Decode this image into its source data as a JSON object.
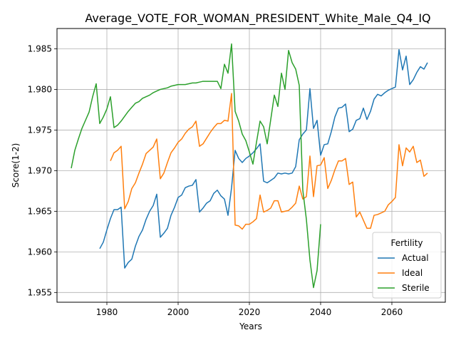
{
  "chart_data": {
    "type": "line",
    "title": "Average_VOTE_FOR_WOMAN_PRESIDENT_White_Male_Q4_IQ",
    "xlabel": "Years",
    "ylabel": "Score(1-2)",
    "xlim": [
      1966,
      2075
    ],
    "ylim": [
      1.9538,
      1.9875
    ],
    "xticks": [
      1980,
      2000,
      2020,
      2040,
      2060
    ],
    "yticks": [
      1.955,
      1.96,
      1.965,
      1.97,
      1.975,
      1.98,
      1.985
    ],
    "ytick_labels": [
      "1.955",
      "1.960",
      "1.965",
      "1.970",
      "1.975",
      "1.980",
      "1.985"
    ],
    "grid": true,
    "legend": {
      "title": "Fertility",
      "position": "lower-right"
    },
    "series": [
      {
        "name": "Actual",
        "color": "#1f77b4",
        "x": [
          1978,
          1979,
          1980,
          1981,
          1982,
          1983,
          1984,
          1985,
          1986,
          1987,
          1988,
          1989,
          1990,
          1991,
          1992,
          1993,
          1994,
          1995,
          1996,
          1997,
          1998,
          1999,
          2000,
          2001,
          2002,
          2003,
          2004,
          2005,
          2006,
          2007,
          2008,
          2009,
          2010,
          2011,
          2012,
          2013,
          2014,
          2015,
          2016,
          2017,
          2018,
          2019,
          2020,
          2021,
          2022,
          2023,
          2024,
          2025,
          2026,
          2027,
          2028,
          2029,
          2030,
          2031,
          2032,
          2033,
          2034,
          2035,
          2036,
          2037,
          2038,
          2039,
          2040,
          2041,
          2042,
          2043,
          2044,
          2045,
          2046,
          2047,
          2048,
          2049,
          2050,
          2051,
          2052,
          2053,
          2054,
          2055,
          2056,
          2057,
          2058,
          2059,
          2060,
          2061,
          2062,
          2063,
          2064,
          2065,
          2066,
          2067,
          2068,
          2069,
          2070
        ],
        "values": [
          1.9604,
          1.9612,
          1.9627,
          1.9641,
          1.9652,
          1.9652,
          1.9655,
          1.958,
          1.9587,
          1.9591,
          1.9607,
          1.9619,
          1.9627,
          1.964,
          1.965,
          1.9657,
          1.9671,
          1.9618,
          1.9623,
          1.9629,
          1.9645,
          1.9655,
          1.9667,
          1.967,
          1.9679,
          1.9681,
          1.9682,
          1.9689,
          1.9649,
          1.9654,
          1.966,
          1.9663,
          1.9672,
          1.9676,
          1.9669,
          1.9665,
          1.9645,
          1.9679,
          1.9725,
          1.9715,
          1.971,
          1.9715,
          1.9718,
          1.9722,
          1.9727,
          1.9733,
          1.9687,
          1.9685,
          1.9688,
          1.9691,
          1.9697,
          1.9696,
          1.9697,
          1.9696,
          1.9697,
          1.9705,
          1.9738,
          1.9745,
          1.975,
          1.9801,
          1.9752,
          1.9762,
          1.9719,
          1.9732,
          1.9733,
          1.9748,
          1.9766,
          1.9777,
          1.9778,
          1.9782,
          1.9748,
          1.9751,
          1.9762,
          1.9764,
          1.9777,
          1.9763,
          1.9773,
          1.9788,
          1.9794,
          1.9792,
          1.9796,
          1.9799,
          1.9801,
          1.9803,
          1.9849,
          1.9824,
          1.9841,
          1.9806,
          1.9812,
          1.9821,
          1.9828,
          1.9825,
          1.9833
        ]
      },
      {
        "name": "Ideal",
        "color": "#ff7f0e",
        "x": [
          1981,
          1982,
          1983,
          1984,
          1985,
          1986,
          1987,
          1988,
          1989,
          1990,
          1991,
          1992,
          1993,
          1994,
          1995,
          1996,
          1997,
          1998,
          1999,
          2000,
          2001,
          2002,
          2003,
          2004,
          2005,
          2006,
          2007,
          2008,
          2009,
          2010,
          2011,
          2012,
          2013,
          2014,
          2015,
          2016,
          2017,
          2018,
          2019,
          2020,
          2021,
          2022,
          2023,
          2024,
          2025,
          2026,
          2027,
          2028,
          2029,
          2030,
          2031,
          2032,
          2033,
          2034,
          2035,
          2036,
          2037,
          2038,
          2039,
          2040,
          2041,
          2042,
          2043,
          2044,
          2045,
          2046,
          2047,
          2048,
          2049,
          2050,
          2051,
          2052,
          2053,
          2054,
          2055,
          2056,
          2057,
          2058,
          2059,
          2060,
          2061,
          2062,
          2063,
          2064,
          2065,
          2066,
          2067,
          2068,
          2069,
          2070
        ],
        "values": [
          1.9712,
          1.9722,
          1.9725,
          1.973,
          1.9653,
          1.9662,
          1.9678,
          1.9685,
          1.9697,
          1.9708,
          1.9721,
          1.9725,
          1.9729,
          1.9739,
          1.969,
          1.9697,
          1.971,
          1.9722,
          1.9728,
          1.9735,
          1.9739,
          1.9746,
          1.9751,
          1.9754,
          1.9761,
          1.973,
          1.9733,
          1.974,
          1.9747,
          1.9753,
          1.9758,
          1.9758,
          1.9762,
          1.9761,
          1.9795,
          1.9633,
          1.9632,
          1.9628,
          1.9634,
          1.9634,
          1.9637,
          1.9641,
          1.967,
          1.9649,
          1.9651,
          1.9654,
          1.9663,
          1.9663,
          1.9649,
          1.965,
          1.9651,
          1.9655,
          1.966,
          1.9681,
          1.9665,
          1.9668,
          1.9718,
          1.9668,
          1.9706,
          1.9707,
          1.9716,
          1.9678,
          1.9688,
          1.9701,
          1.9712,
          1.9712,
          1.9715,
          1.9683,
          1.9686,
          1.9643,
          1.9649,
          1.9639,
          1.9629,
          1.9629,
          1.9645,
          1.9646,
          1.9648,
          1.965,
          1.9658,
          1.9662,
          1.9667,
          1.9732,
          1.9706,
          1.9728,
          1.9723,
          1.973,
          1.971,
          1.9713,
          1.9693,
          1.9697
        ]
      },
      {
        "name": "Sterile",
        "color": "#2ca02c",
        "x": [
          1970,
          1971,
          1972,
          1973,
          1974,
          1975,
          1976,
          1977,
          1978,
          1979,
          1980,
          1981,
          1982,
          1983,
          1984,
          1985,
          1986,
          1987,
          1988,
          1989,
          1990,
          1991,
          1992,
          1993,
          1994,
          1995,
          1996,
          1997,
          1998,
          1999,
          2000,
          2001,
          2002,
          2003,
          2004,
          2005,
          2006,
          2007,
          2008,
          2009,
          2010,
          2011,
          2012,
          2013,
          2014,
          2015,
          2016,
          2017,
          2018,
          2019,
          2020,
          2021,
          2022,
          2023,
          2024,
          2025,
          2026,
          2027,
          2028,
          2029,
          2030,
          2031,
          2032,
          2033,
          2034,
          2035,
          2036,
          2037,
          2038,
          2039,
          2040
        ],
        "values": [
          1.9703,
          1.9725,
          1.9739,
          1.9752,
          1.9762,
          1.9772,
          1.9791,
          1.9807,
          1.9758,
          1.9766,
          1.9776,
          1.9791,
          1.9753,
          1.9756,
          1.9761,
          1.9767,
          1.9773,
          1.9778,
          1.9783,
          1.9785,
          1.9789,
          1.9791,
          1.9793,
          1.9796,
          1.9798,
          1.98,
          1.9801,
          1.9802,
          1.9804,
          1.9805,
          1.9806,
          1.9806,
          1.9806,
          1.9807,
          1.9808,
          1.9808,
          1.9809,
          1.981,
          1.981,
          1.981,
          1.981,
          1.981,
          1.9801,
          1.9831,
          1.982,
          1.9856,
          1.9773,
          1.9761,
          1.9745,
          1.9737,
          1.9723,
          1.9708,
          1.9735,
          1.9761,
          1.9754,
          1.9733,
          1.9763,
          1.9793,
          1.9779,
          1.982,
          1.98,
          1.9848,
          1.9833,
          1.9825,
          1.9805,
          1.9676,
          1.964,
          1.959,
          1.9556,
          1.9577,
          1.9634
        ]
      }
    ]
  }
}
